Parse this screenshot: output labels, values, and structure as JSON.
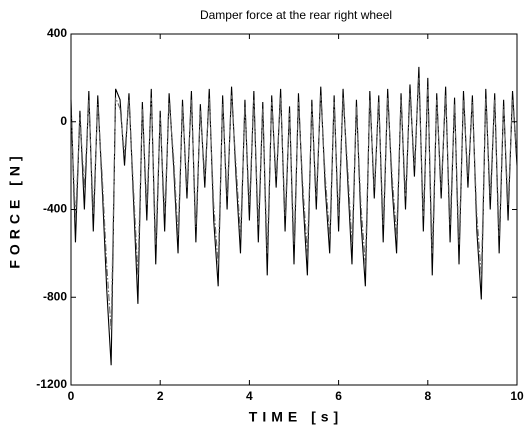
{
  "chart_data": {
    "type": "line",
    "title": "Damper force at the rear right wheel",
    "xlabel": "TIME [s]",
    "ylabel": "FORCE [N]",
    "x": [
      0,
      0.1,
      0.2,
      0.3,
      0.4,
      0.5,
      0.6,
      0.7,
      0.8,
      0.9,
      1,
      1.1,
      1.2,
      1.3,
      1.4,
      1.5,
      1.6,
      1.7,
      1.8,
      1.9,
      2,
      2.1,
      2.2,
      2.3,
      2.4,
      2.5,
      2.6,
      2.7,
      2.8,
      2.9,
      3,
      3.1,
      3.2,
      3.3,
      3.4,
      3.5,
      3.6,
      3.7,
      3.8,
      3.9,
      4,
      4.1,
      4.2,
      4.3,
      4.4,
      4.5,
      4.6,
      4.7,
      4.8,
      4.9,
      5,
      5.1,
      5.2,
      5.3,
      5.4,
      5.5,
      5.6,
      5.7,
      5.8,
      5.9,
      6,
      6.1,
      6.2,
      6.3,
      6.4,
      6.5,
      6.6,
      6.7,
      6.8,
      6.9,
      7,
      7.1,
      7.2,
      7.3,
      7.4,
      7.5,
      7.6,
      7.7,
      7.8,
      7.9,
      8,
      8.1,
      8.2,
      8.3,
      8.4,
      8.5,
      8.6,
      8.7,
      8.8,
      8.9,
      9,
      9.1,
      9.2,
      9.3,
      9.4,
      9.5,
      9.6,
      9.7,
      9.8,
      9.9,
      10
    ],
    "series": [
      {
        "color": "#000000",
        "dash": "solid",
        "values": [
          100,
          -550,
          50,
          -400,
          140,
          -500,
          120,
          -300,
          -760,
          -1110,
          150,
          100,
          -200,
          130,
          -350,
          -830,
          90,
          -450,
          150,
          -650,
          50,
          -500,
          130,
          -200,
          -600,
          100,
          -350,
          140,
          -550,
          80,
          -300,
          150,
          -450,
          -750,
          120,
          -400,
          160,
          -250,
          -600,
          100,
          -450,
          140,
          -550,
          90,
          -700,
          120,
          -300,
          150,
          -500,
          70,
          -650,
          130,
          -350,
          -700,
          100,
          -400,
          160,
          -300,
          -600,
          120,
          -500,
          150,
          -250,
          -650,
          100,
          -450,
          -750,
          140,
          -350,
          120,
          -550,
          150,
          -300,
          -600,
          130,
          -400,
          170,
          -250,
          250,
          -500,
          200,
          -700,
          130,
          -350,
          160,
          -550,
          110,
          -650,
          140,
          -300,
          120,
          -500,
          -810,
          150,
          -400,
          130,
          -600,
          100,
          -450,
          140,
          -200
        ]
      },
      {
        "color": "#666666",
        "dash": "dashdot",
        "values": [
          60,
          -450,
          20,
          -300,
          100,
          -420,
          80,
          -250,
          -650,
          -950,
          110,
          60,
          -150,
          100,
          -300,
          -700,
          60,
          -380,
          110,
          -560,
          20,
          -420,
          90,
          -160,
          -520,
          70,
          -300,
          100,
          -480,
          50,
          -250,
          110,
          -380,
          -650,
          80,
          -340,
          120,
          -200,
          -520,
          70,
          -380,
          100,
          -470,
          60,
          -600,
          90,
          -250,
          110,
          -430,
          40,
          -560,
          90,
          -300,
          -600,
          70,
          -340,
          120,
          -250,
          -520,
          90,
          -430,
          110,
          -200,
          -560,
          70,
          -380,
          -650,
          100,
          -300,
          90,
          -470,
          110,
          -250,
          -520,
          100,
          -340,
          130,
          -200,
          200,
          -430,
          160,
          -600,
          100,
          -300,
          120,
          -470,
          80,
          -560,
          100,
          -250,
          90,
          -430,
          -700,
          110,
          -340,
          100,
          -520,
          70,
          -380,
          100,
          -160
        ]
      }
    ],
    "xlim": [
      0,
      10
    ],
    "xticks": [
      0,
      2,
      4,
      6,
      8,
      10
    ],
    "ylim": [
      -1200,
      400
    ],
    "yticks": [
      -1200,
      -800,
      -400,
      0,
      400
    ],
    "grid": false
  }
}
